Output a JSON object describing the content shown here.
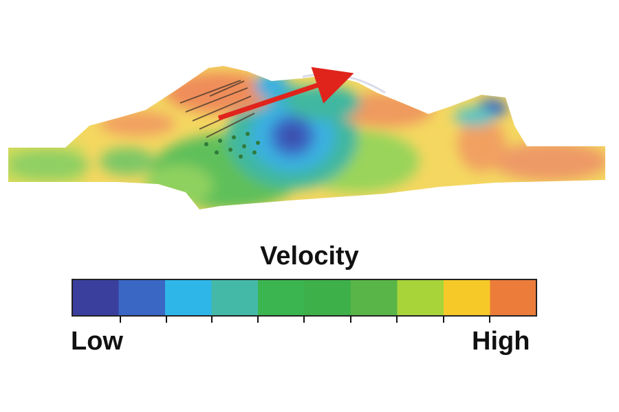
{
  "legend": {
    "title": "Velocity",
    "low_label": "Low",
    "high_label": "High",
    "colors": [
      "#3a3f9e",
      "#3a66c4",
      "#2fb6e8",
      "#45b9a8",
      "#3bb550",
      "#3eb04a",
      "#59b548",
      "#a8d43a",
      "#f7c928",
      "#ec7c3a"
    ]
  },
  "arrow": {
    "color": "#e0241c"
  }
}
